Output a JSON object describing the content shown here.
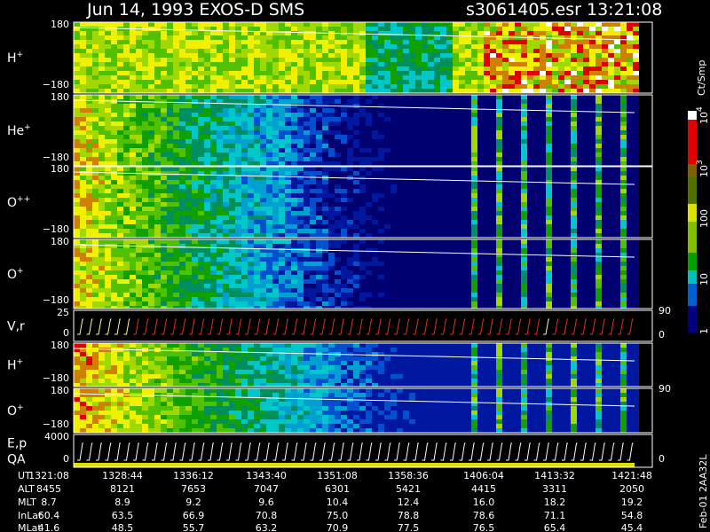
{
  "header": {
    "title": "Jun 14, 1993   EXOS-D SMS",
    "file_time": "s3061405.esr  13:21:08"
  },
  "panels": [
    {
      "label": {
        "base": "H",
        "sup": "+"
      },
      "ticks": [
        "180",
        "−180"
      ]
    },
    {
      "label": {
        "base": "He",
        "sup": "+"
      },
      "ticks": [
        "180",
        "−180"
      ]
    },
    {
      "label": {
        "base": "O",
        "sup": "++"
      },
      "ticks": [
        "180",
        "−180"
      ]
    },
    {
      "label": {
        "base": "O",
        "sup": "+"
      },
      "ticks": [
        "180",
        "−180"
      ]
    },
    {
      "label": {
        "base": "V,r",
        "sup": ""
      },
      "ticks": [
        "25",
        "0"
      ],
      "right_ticks": [
        "90",
        "0"
      ]
    },
    {
      "label": {
        "base": "H",
        "sup": "+"
      },
      "ticks": [
        "180",
        "−180"
      ]
    },
    {
      "label": {
        "base": "O",
        "sup": "+"
      },
      "ticks": [
        "180",
        "−180"
      ],
      "right_ticks": [
        "90"
      ]
    },
    {
      "label": {
        "base": "E,p",
        "sup": ""
      },
      "label2": "QA",
      "ticks": [
        "4000",
        "0"
      ],
      "right_ticks": [
        "0"
      ]
    }
  ],
  "colorbar": {
    "unit": "Ct/Smp",
    "labels": [
      {
        "base": "10",
        "sup": "4"
      },
      {
        "base": "10",
        "sup": "3"
      },
      {
        "base": "100",
        "sup": ""
      },
      {
        "base": "10",
        "sup": ""
      },
      {
        "base": "1",
        "sup": ""
      }
    ]
  },
  "table": {
    "row_labels": [
      "UT",
      "ALT",
      "MLT",
      "InLat",
      "MLat"
    ],
    "rows": [
      [
        "1321:08",
        "1328:44",
        "1336:12",
        "1343:40",
        "1351:08",
        "1358:36",
        "1406:04",
        "1413:32",
        "1421:48"
      ],
      [
        "8455",
        "8121",
        "7653",
        "7047",
        "6301",
        "5421",
        "4415",
        "3311",
        "2050"
      ],
      [
        "8.7",
        "8.9",
        "9.2",
        "9.6",
        "10.4",
        "12.4",
        "16.0",
        "18.2",
        "19.2"
      ],
      [
        "60.4",
        "63.5",
        "66.9",
        "70.8",
        "75.0",
        "78.8",
        "78.6",
        "71.1",
        "54.8"
      ],
      [
        "41.6",
        "48.5",
        "55.7",
        "63.2",
        "70.9",
        "77.5",
        "76.5",
        "65.4",
        "45.4"
      ]
    ]
  },
  "footer": "Feb-01 2AA32L"
}
